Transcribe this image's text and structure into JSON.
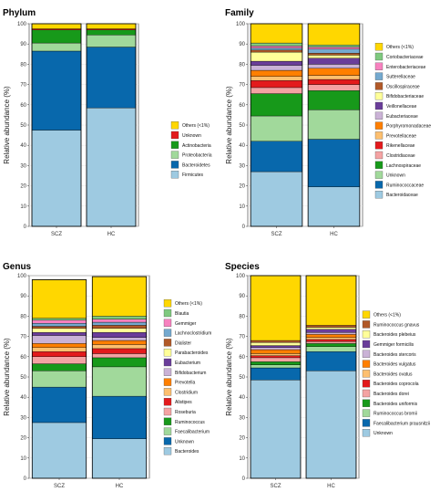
{
  "chart_data": [
    {
      "type": "bar",
      "title": "Phylum",
      "ylabel": "Relative abundance (%)",
      "xlabel": "",
      "ylim": [
        0,
        100
      ],
      "yticks": [
        0,
        10,
        20,
        30,
        40,
        50,
        60,
        70,
        80,
        90,
        100
      ],
      "grid": true,
      "legend_position": "right",
      "categories": [
        "SCZ",
        "HC"
      ],
      "series": [
        {
          "name": "Firmicutes",
          "color": "#9ecae1",
          "values": [
            47.5,
            58.5
          ]
        },
        {
          "name": "Bacteroidetes",
          "color": "#0868ac",
          "values": [
            39.0,
            30.0
          ]
        },
        {
          "name": "Proteobacteria",
          "color": "#a1d99b",
          "values": [
            4.0,
            6.0
          ]
        },
        {
          "name": "Actinobacteria",
          "color": "#17991a",
          "values": [
            6.5,
            2.5
          ]
        },
        {
          "name": "Unknown",
          "color": "#e31a1c",
          "values": [
            0.5,
            0.5
          ]
        },
        {
          "name": "Others (<1%)",
          "color": "#ffd700",
          "values": [
            2.5,
            2.5
          ]
        }
      ]
    },
    {
      "type": "bar",
      "title": "Family",
      "ylabel": "Relative abundance (%)",
      "xlabel": "",
      "ylim": [
        0,
        100
      ],
      "yticks": [
        0,
        10,
        20,
        30,
        40,
        50,
        60,
        70,
        80,
        90,
        100
      ],
      "grid": true,
      "legend_position": "right",
      "categories": [
        "SCZ",
        "HC"
      ],
      "series": [
        {
          "name": "Bacteroidaceae",
          "color": "#9ecae1",
          "values": [
            27.0,
            19.5
          ]
        },
        {
          "name": "Ruminococcaceae",
          "color": "#0868ac",
          "values": [
            15.0,
            23.5
          ]
        },
        {
          "name": "Unknown",
          "color": "#a1d99b",
          "values": [
            12.5,
            14.5
          ]
        },
        {
          "name": "Lachnospiraceae",
          "color": "#17991a",
          "values": [
            11.0,
            9.5
          ]
        },
        {
          "name": "Clostridiaceae",
          "color": "#f4a3a3",
          "values": [
            3.0,
            3.0
          ]
        },
        {
          "name": "Rikenellaceae",
          "color": "#e31a1c",
          "values": [
            3.5,
            2.5
          ]
        },
        {
          "name": "Prevotellaceae",
          "color": "#fdbf6f",
          "values": [
            2.0,
            2.0
          ]
        },
        {
          "name": "Porphyromonadaceae",
          "color": "#ff7f00",
          "values": [
            3.0,
            3.5
          ]
        },
        {
          "name": "Eubacteriaceae",
          "color": "#cab2d6",
          "values": [
            2.5,
            2.0
          ]
        },
        {
          "name": "Veillonellaceae",
          "color": "#6a3d9a",
          "values": [
            2.0,
            3.0
          ]
        },
        {
          "name": "Bifidobacteriaceae",
          "color": "#ffff99",
          "values": [
            4.5,
            1.5
          ]
        },
        {
          "name": "Oscillospiraceae",
          "color": "#b15928",
          "values": [
            1.0,
            1.0
          ]
        },
        {
          "name": "Sutterellaceae",
          "color": "#74a9cf",
          "values": [
            1.0,
            2.0
          ]
        },
        {
          "name": "Enterobacteriaceae",
          "color": "#f781bf",
          "values": [
            1.0,
            1.0
          ]
        },
        {
          "name": "Coriobacteriaceae",
          "color": "#7fc97f",
          "values": [
            1.5,
            1.0
          ]
        },
        {
          "name": "Others (<1%)",
          "color": "#ffd700",
          "values": [
            9.5,
            10.5
          ]
        }
      ]
    },
    {
      "type": "bar",
      "title": "Genus",
      "ylabel": "Relative abundance (%)",
      "xlabel": "",
      "ylim": [
        0,
        100
      ],
      "yticks": [
        0,
        10,
        20,
        30,
        40,
        50,
        60,
        70,
        80,
        90,
        100
      ],
      "grid": true,
      "legend_position": "right",
      "categories": [
        "SCZ",
        "HC"
      ],
      "series": [
        {
          "name": "Bacteroides",
          "color": "#9ecae1",
          "values": [
            27.5,
            19.5
          ]
        },
        {
          "name": "Unknown",
          "color": "#0868ac",
          "values": [
            17.5,
            21.0
          ]
        },
        {
          "name": "Faecalibacterium",
          "color": "#a1d99b",
          "values": [
            8.0,
            14.5
          ]
        },
        {
          "name": "Ruminococcus",
          "color": "#17991a",
          "values": [
            3.5,
            4.5
          ]
        },
        {
          "name": "Roseburia",
          "color": "#f4a3a3",
          "values": [
            3.5,
            2.0
          ]
        },
        {
          "name": "Alistipes",
          "color": "#e31a1c",
          "values": [
            2.5,
            2.5
          ]
        },
        {
          "name": "Clostridium",
          "color": "#fdbf6f",
          "values": [
            2.0,
            2.0
          ]
        },
        {
          "name": "Prevotella",
          "color": "#ff7f00",
          "values": [
            2.0,
            2.0
          ]
        },
        {
          "name": "Bifidobacterium",
          "color": "#cab2d6",
          "values": [
            4.0,
            1.5
          ]
        },
        {
          "name": "Eubacterium",
          "color": "#6a3d9a",
          "values": [
            1.5,
            2.5
          ]
        },
        {
          "name": "Parabacteroides",
          "color": "#ffff99",
          "values": [
            2.0,
            2.0
          ]
        },
        {
          "name": "Dialister",
          "color": "#b15928",
          "values": [
            1.0,
            1.5
          ]
        },
        {
          "name": "Lachnoclostridium",
          "color": "#74a9cf",
          "values": [
            1.5,
            1.5
          ]
        },
        {
          "name": "Gemmiger",
          "color": "#f781bf",
          "values": [
            1.5,
            1.5
          ]
        },
        {
          "name": "Blautia",
          "color": "#7fc97f",
          "values": [
            1.0,
            1.5
          ]
        },
        {
          "name": "Others (<1%)",
          "color": "#ffd700",
          "values": [
            19.0,
            19.5
          ]
        }
      ]
    },
    {
      "type": "bar",
      "title": "Species",
      "ylabel": "Relative abundance (%)",
      "xlabel": "",
      "ylim": [
        0,
        100
      ],
      "yticks": [
        0,
        10,
        20,
        30,
        40,
        50,
        60,
        70,
        80,
        90,
        100
      ],
      "grid": true,
      "legend_position": "right",
      "categories": [
        "SCZ",
        "HC"
      ],
      "series": [
        {
          "name": "Unknown",
          "color": "#9ecae1",
          "values": [
            48.5,
            53.0
          ]
        },
        {
          "name": "Faecalibacterium prausnitzii",
          "color": "#0868ac",
          "values": [
            6.0,
            9.5
          ]
        },
        {
          "name": "Ruminococcus bromii",
          "color": "#a1d99b",
          "values": [
            1.5,
            2.5
          ]
        },
        {
          "name": "Bacteroides uniformis",
          "color": "#17991a",
          "values": [
            1.5,
            1.5
          ]
        },
        {
          "name": "Bacteroides dorei",
          "color": "#f4a3a3",
          "values": [
            2.0,
            1.0
          ]
        },
        {
          "name": "Bacteroides coprocola",
          "color": "#e31a1c",
          "values": [
            1.0,
            1.0
          ]
        },
        {
          "name": "Bacteroides ovatus",
          "color": "#fdbf6f",
          "values": [
            1.0,
            1.0
          ]
        },
        {
          "name": "Bacteroides vulgatus",
          "color": "#ff7f00",
          "values": [
            2.0,
            1.5
          ]
        },
        {
          "name": "Bacteroides stercoris",
          "color": "#cab2d6",
          "values": [
            1.0,
            1.0
          ]
        },
        {
          "name": "Gemmiger formicilis",
          "color": "#6a3d9a",
          "values": [
            1.0,
            1.5
          ]
        },
        {
          "name": "Bacteroides plebeius",
          "color": "#ffff99",
          "values": [
            1.5,
            1.0
          ]
        },
        {
          "name": "Ruminococcus gnavus",
          "color": "#b15928",
          "values": [
            1.0,
            1.0
          ]
        },
        {
          "name": "Others (<1%)",
          "color": "#ffd700",
          "values": [
            32.0,
            24.5
          ]
        }
      ]
    }
  ]
}
